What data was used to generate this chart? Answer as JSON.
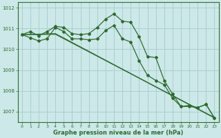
{
  "bg_color": "#cce8e8",
  "grid_color": "#aacfcf",
  "line_color": "#2d6b2d",
  "title": "Graphe pression niveau de la mer (hPa)",
  "xlim": [
    -0.5,
    23.5
  ],
  "ylim": [
    1006.5,
    1012.25
  ],
  "yticks": [
    1007,
    1008,
    1009,
    1010,
    1011,
    1012
  ],
  "xticks": [
    0,
    1,
    2,
    3,
    4,
    5,
    6,
    7,
    8,
    9,
    10,
    11,
    12,
    13,
    14,
    15,
    16,
    17,
    18,
    19,
    20,
    21,
    22,
    23
  ],
  "series": [
    {
      "name": "line1_up",
      "x": [
        0,
        1,
        2,
        3,
        4,
        5,
        6,
        7,
        8,
        9,
        10,
        11,
        12,
        13,
        14,
        15,
        16,
        17,
        18,
        19,
        20,
        21,
        22,
        23
      ],
      "y": [
        1010.7,
        1010.85,
        1010.65,
        1010.85,
        1011.1,
        1011.05,
        1010.75,
        1010.7,
        1010.75,
        1011.05,
        1011.45,
        1011.7,
        1011.35,
        1011.3,
        1010.6,
        1009.65,
        1009.6,
        1008.5,
        1007.85,
        1007.25,
        1007.3,
        1007.2,
        1007.35,
        1006.7
      ],
      "marker": true
    },
    {
      "name": "line2_down",
      "x": [
        0,
        1,
        2,
        3,
        4,
        5,
        6,
        7,
        8,
        9,
        10,
        11,
        12,
        13,
        14,
        15,
        16,
        17,
        18,
        19,
        20,
        21,
        22,
        23
      ],
      "y": [
        1010.7,
        1010.55,
        1010.4,
        1010.5,
        1011.05,
        1010.85,
        1010.5,
        1010.5,
        1010.45,
        1010.5,
        1010.9,
        1011.15,
        1010.5,
        1010.35,
        1009.45,
        1008.75,
        1008.5,
        1008.3,
        1007.65,
        1007.25,
        1007.25,
        1007.2,
        1007.35,
        1006.7
      ],
      "marker": true
    },
    {
      "name": "line3_linear",
      "x": [
        0,
        4,
        23
      ],
      "y": [
        1010.7,
        1010.75,
        1006.7
      ],
      "marker": false
    },
    {
      "name": "line4_linear",
      "x": [
        0,
        4,
        23
      ],
      "y": [
        1010.7,
        1010.72,
        1006.72
      ],
      "marker": false
    }
  ]
}
